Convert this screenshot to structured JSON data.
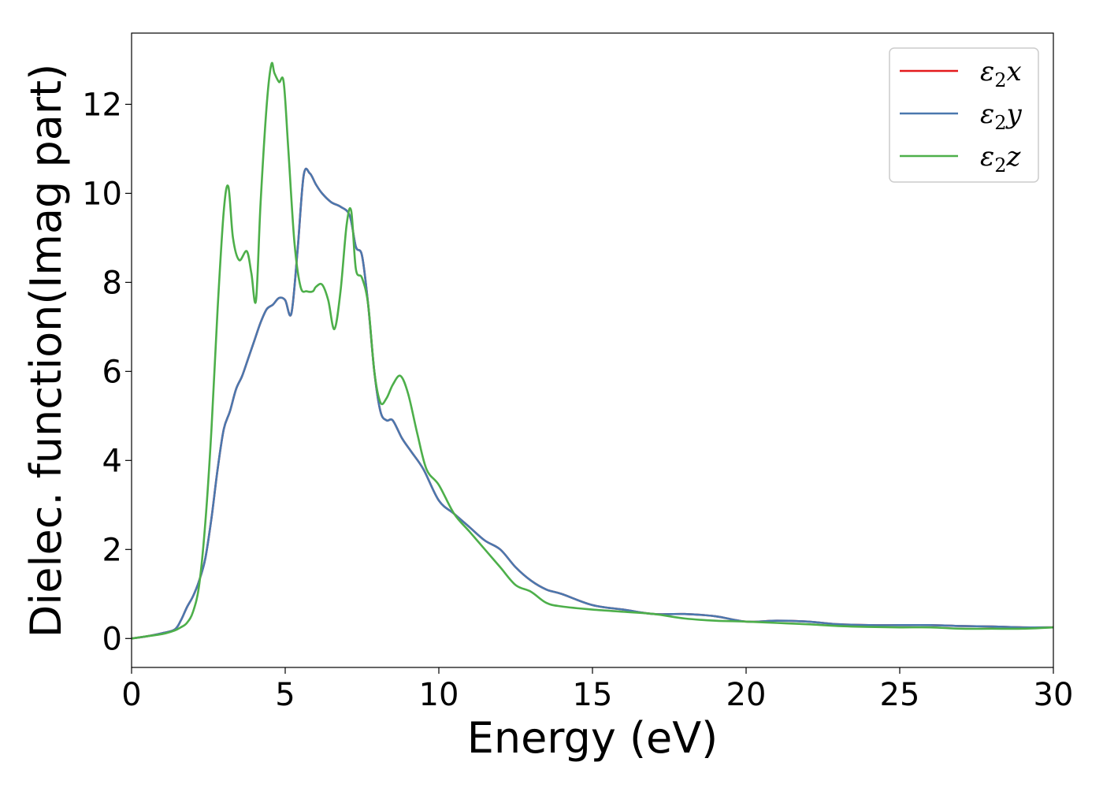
{
  "chart_data": {
    "type": "line",
    "xlabel": "Energy (eV)",
    "ylabel": "Dielec. function(Imag part)",
    "xlim": [
      0,
      30
    ],
    "ylim": [
      -0.65,
      13.6
    ],
    "xticks": [
      0,
      5,
      10,
      15,
      20,
      25,
      30
    ],
    "yticks": [
      0,
      2,
      4,
      6,
      8,
      10,
      12
    ],
    "grid": false,
    "legend_position": "top-right",
    "series": [
      {
        "name": "ε2x",
        "legend": {
          "base": "ε",
          "sub": "2",
          "axis": "x"
        },
        "color": "#e41a1c",
        "x": [
          0,
          0.5,
          1.0,
          1.4,
          1.6,
          1.8,
          2.0,
          2.2,
          2.4,
          2.6,
          2.8,
          3.0,
          3.2,
          3.4,
          3.6,
          3.8,
          4.0,
          4.2,
          4.4,
          4.6,
          4.8,
          5.0,
          5.2,
          5.4,
          5.6,
          5.8,
          6.0,
          6.2,
          6.5,
          6.8,
          7.1,
          7.3,
          7.5,
          7.7,
          7.9,
          8.1,
          8.3,
          8.5,
          8.8,
          9.1,
          9.5,
          10.0,
          10.5,
          11.0,
          11.5,
          12.0,
          12.5,
          13.0,
          13.5,
          14.0,
          15.0,
          16.0,
          17.0,
          18.0,
          19.0,
          20.0,
          21.0,
          22.0,
          23.0,
          24.0,
          25.0,
          26.0,
          27.0,
          28.0,
          29.0,
          30.0
        ],
        "y": [
          0.0,
          0.05,
          0.12,
          0.2,
          0.4,
          0.7,
          0.95,
          1.3,
          1.8,
          2.7,
          3.8,
          4.7,
          5.1,
          5.6,
          5.9,
          6.3,
          6.7,
          7.1,
          7.4,
          7.5,
          7.65,
          7.6,
          7.3,
          8.7,
          10.4,
          10.45,
          10.2,
          10.0,
          9.8,
          9.7,
          9.5,
          8.8,
          8.6,
          7.5,
          6.0,
          5.1,
          4.9,
          4.9,
          4.5,
          4.2,
          3.8,
          3.1,
          2.8,
          2.5,
          2.2,
          2.0,
          1.6,
          1.3,
          1.1,
          1.0,
          0.75,
          0.65,
          0.55,
          0.55,
          0.5,
          0.38,
          0.4,
          0.38,
          0.32,
          0.3,
          0.3,
          0.3,
          0.28,
          0.27,
          0.25,
          0.25
        ]
      },
      {
        "name": "ε2y",
        "legend": {
          "base": "ε",
          "sub": "2",
          "axis": "y"
        },
        "color": "#4a78ae",
        "x": [
          0,
          0.5,
          1.0,
          1.4,
          1.6,
          1.8,
          2.0,
          2.2,
          2.4,
          2.6,
          2.8,
          3.0,
          3.2,
          3.4,
          3.6,
          3.8,
          4.0,
          4.2,
          4.4,
          4.6,
          4.8,
          5.0,
          5.2,
          5.4,
          5.6,
          5.8,
          6.0,
          6.2,
          6.5,
          6.8,
          7.1,
          7.3,
          7.5,
          7.7,
          7.9,
          8.1,
          8.3,
          8.5,
          8.8,
          9.1,
          9.5,
          10.0,
          10.5,
          11.0,
          11.5,
          12.0,
          12.5,
          13.0,
          13.5,
          14.0,
          15.0,
          16.0,
          17.0,
          18.0,
          19.0,
          20.0,
          21.0,
          22.0,
          23.0,
          24.0,
          25.0,
          26.0,
          27.0,
          28.0,
          29.0,
          30.0
        ],
        "y": [
          0.0,
          0.05,
          0.12,
          0.2,
          0.4,
          0.7,
          0.95,
          1.3,
          1.8,
          2.7,
          3.8,
          4.7,
          5.1,
          5.6,
          5.9,
          6.3,
          6.7,
          7.1,
          7.4,
          7.5,
          7.65,
          7.6,
          7.3,
          8.7,
          10.4,
          10.45,
          10.2,
          10.0,
          9.8,
          9.7,
          9.5,
          8.8,
          8.6,
          7.5,
          6.0,
          5.1,
          4.9,
          4.9,
          4.5,
          4.2,
          3.8,
          3.1,
          2.8,
          2.5,
          2.2,
          2.0,
          1.6,
          1.3,
          1.1,
          1.0,
          0.75,
          0.65,
          0.55,
          0.55,
          0.5,
          0.38,
          0.4,
          0.38,
          0.32,
          0.3,
          0.3,
          0.3,
          0.28,
          0.27,
          0.25,
          0.25
        ]
      },
      {
        "name": "ε2z",
        "legend": {
          "base": "ε",
          "sub": "2",
          "axis": "z"
        },
        "color": "#4daf4a",
        "x": [
          0,
          0.5,
          1.0,
          1.4,
          1.6,
          1.8,
          2.0,
          2.2,
          2.4,
          2.6,
          2.8,
          3.0,
          3.15,
          3.3,
          3.5,
          3.75,
          3.9,
          4.05,
          4.2,
          4.4,
          4.55,
          4.65,
          4.8,
          4.95,
          5.1,
          5.3,
          5.5,
          5.7,
          5.9,
          6.0,
          6.2,
          6.4,
          6.6,
          6.8,
          7.0,
          7.15,
          7.3,
          7.5,
          7.7,
          7.9,
          8.1,
          8.3,
          8.5,
          8.75,
          9.0,
          9.3,
          9.6,
          10.0,
          10.5,
          11.0,
          11.5,
          12.0,
          12.5,
          13.0,
          13.5,
          14.0,
          15.0,
          16.0,
          17.0,
          18.0,
          19.0,
          20.0,
          21.0,
          22.0,
          23.0,
          24.0,
          25.0,
          26.0,
          27.0,
          28.0,
          29.0,
          30.0
        ],
        "y": [
          0.0,
          0.05,
          0.1,
          0.18,
          0.25,
          0.35,
          0.6,
          1.2,
          2.6,
          4.7,
          7.4,
          9.6,
          10.15,
          9.0,
          8.5,
          8.7,
          8.2,
          7.6,
          9.8,
          12.0,
          12.9,
          12.7,
          12.5,
          12.5,
          11.0,
          8.9,
          7.9,
          7.8,
          7.8,
          7.9,
          7.95,
          7.6,
          6.95,
          7.8,
          9.3,
          9.6,
          8.3,
          8.1,
          7.5,
          6.0,
          5.3,
          5.4,
          5.7,
          5.9,
          5.5,
          4.6,
          3.8,
          3.45,
          2.8,
          2.4,
          2.0,
          1.6,
          1.2,
          1.05,
          0.8,
          0.72,
          0.65,
          0.6,
          0.55,
          0.45,
          0.4,
          0.38,
          0.35,
          0.32,
          0.28,
          0.26,
          0.25,
          0.25,
          0.22,
          0.22,
          0.22,
          0.25
        ]
      }
    ]
  }
}
